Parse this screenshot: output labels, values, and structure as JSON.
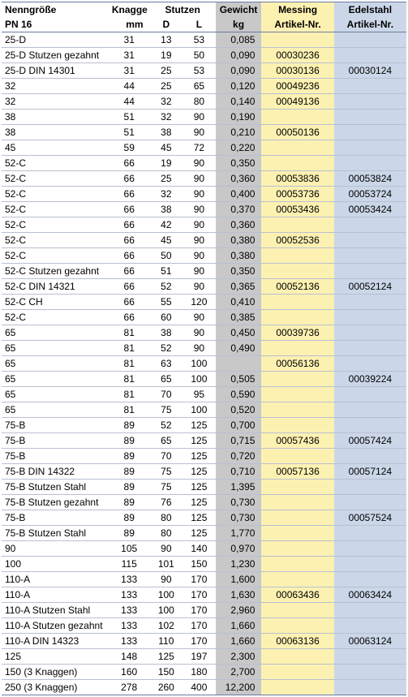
{
  "header": {
    "row1": {
      "name": "Nenngröße",
      "knagge": "Knagge",
      "stutzen": "Stutzen",
      "gewicht": "Gewicht",
      "messing": "Messing",
      "edelstahl": "Edelstahl"
    },
    "row2": {
      "name": "PN 16",
      "knagge": "mm",
      "d": "D",
      "l": "L",
      "gewicht": "kg",
      "messing": "Artikel-Nr.",
      "edelstahl": "Artikel-Nr."
    }
  },
  "colors": {
    "gewicht_bg": "#c8c8c8",
    "messing_bg": "#fdf1b2",
    "edelstahl_bg": "#cbd7e8",
    "border": "#b8c0d0",
    "outer_border": "#6a7ca0"
  },
  "rows": [
    {
      "name": "25-D",
      "knagge": "31",
      "d": "13",
      "l": "53",
      "wt": "0,085",
      "mes": "",
      "edl": ""
    },
    {
      "name": "25-D Stutzen gezahnt",
      "knagge": "31",
      "d": "19",
      "l": "50",
      "wt": "0,090",
      "mes": "00030236",
      "edl": ""
    },
    {
      "name": "25-D DIN 14301",
      "knagge": "31",
      "d": "25",
      "l": "53",
      "wt": "0,090",
      "mes": "00030136",
      "edl": "00030124"
    },
    {
      "name": "32",
      "knagge": "44",
      "d": "25",
      "l": "65",
      "wt": "0,120",
      "mes": "00049236",
      "edl": ""
    },
    {
      "name": "32",
      "knagge": "44",
      "d": "32",
      "l": "80",
      "wt": "0,140",
      "mes": "00049136",
      "edl": ""
    },
    {
      "name": "38",
      "knagge": "51",
      "d": "32",
      "l": "90",
      "wt": "0,190",
      "mes": "",
      "edl": ""
    },
    {
      "name": "38",
      "knagge": "51",
      "d": "38",
      "l": "90",
      "wt": "0,210",
      "mes": "00050136",
      "edl": ""
    },
    {
      "name": "45",
      "knagge": "59",
      "d": "45",
      "l": "72",
      "wt": "0,220",
      "mes": "",
      "edl": ""
    },
    {
      "name": "52-C",
      "knagge": "66",
      "d": "19",
      "l": "90",
      "wt": "0,350",
      "mes": "",
      "edl": ""
    },
    {
      "name": "52-C",
      "knagge": "66",
      "d": "25",
      "l": "90",
      "wt": "0,360",
      "mes": "00053836",
      "edl": "00053824"
    },
    {
      "name": "52-C",
      "knagge": "66",
      "d": "32",
      "l": "90",
      "wt": "0,400",
      "mes": "00053736",
      "edl": "00053724"
    },
    {
      "name": "52-C",
      "knagge": "66",
      "d": "38",
      "l": "90",
      "wt": "0,370",
      "mes": "00053436",
      "edl": "00053424"
    },
    {
      "name": "52-C",
      "knagge": "66",
      "d": "42",
      "l": "90",
      "wt": "0,360",
      "mes": "",
      "edl": ""
    },
    {
      "name": "52-C",
      "knagge": "66",
      "d": "45",
      "l": "90",
      "wt": "0,380",
      "mes": "00052536",
      "edl": ""
    },
    {
      "name": "52-C",
      "knagge": "66",
      "d": "50",
      "l": "90",
      "wt": "0,380",
      "mes": "",
      "edl": ""
    },
    {
      "name": "52-C Stutzen gezahnt",
      "knagge": "66",
      "d": "51",
      "l": "90",
      "wt": "0,350",
      "mes": "",
      "edl": ""
    },
    {
      "name": "52-C DIN 14321",
      "knagge": "66",
      "d": "52",
      "l": "90",
      "wt": "0,365",
      "mes": "00052136",
      "edl": "00052124"
    },
    {
      "name": "52-C CH",
      "knagge": "66",
      "d": "55",
      "l": "120",
      "wt": "0,410",
      "mes": "",
      "edl": ""
    },
    {
      "name": "52-C",
      "knagge": "66",
      "d": "60",
      "l": "90",
      "wt": "0,385",
      "mes": "",
      "edl": ""
    },
    {
      "name": "65",
      "knagge": "81",
      "d": "38",
      "l": "90",
      "wt": "0,450",
      "mes": "00039736",
      "edl": ""
    },
    {
      "name": "65",
      "knagge": "81",
      "d": "52",
      "l": "90",
      "wt": "0,490",
      "mes": "",
      "edl": ""
    },
    {
      "name": "65",
      "knagge": "81",
      "d": "63",
      "l": "100",
      "wt": "",
      "mes": "00056136",
      "edl": ""
    },
    {
      "name": "65",
      "knagge": "81",
      "d": "65",
      "l": "100",
      "wt": "0,505",
      "mes": "",
      "edl": "00039224"
    },
    {
      "name": "65",
      "knagge": "81",
      "d": "70",
      "l": "95",
      "wt": "0,590",
      "mes": "",
      "edl": ""
    },
    {
      "name": "65",
      "knagge": "81",
      "d": "75",
      "l": "100",
      "wt": "0,520",
      "mes": "",
      "edl": ""
    },
    {
      "name": "75-B",
      "knagge": "89",
      "d": "52",
      "l": "125",
      "wt": "0,700",
      "mes": "",
      "edl": ""
    },
    {
      "name": "75-B",
      "knagge": "89",
      "d": "65",
      "l": "125",
      "wt": "0,715",
      "mes": "00057436",
      "edl": "00057424"
    },
    {
      "name": "75-B",
      "knagge": "89",
      "d": "70",
      "l": "125",
      "wt": "0,720",
      "mes": "",
      "edl": ""
    },
    {
      "name": "75-B DIN 14322",
      "knagge": "89",
      "d": "75",
      "l": "125",
      "wt": "0,710",
      "mes": "00057136",
      "edl": "00057124"
    },
    {
      "name": "75-B Stutzen Stahl",
      "knagge": "89",
      "d": "75",
      "l": "125",
      "wt": "1,395",
      "mes": "",
      "edl": ""
    },
    {
      "name": "75-B Stutzen gezahnt",
      "knagge": "89",
      "d": "76",
      "l": "125",
      "wt": "0,730",
      "mes": "",
      "edl": ""
    },
    {
      "name": "75-B",
      "knagge": "89",
      "d": "80",
      "l": "125",
      "wt": "0,730",
      "mes": "",
      "edl": "00057524"
    },
    {
      "name": "75-B Stutzen Stahl",
      "knagge": "89",
      "d": "80",
      "l": "125",
      "wt": "1,770",
      "mes": "",
      "edl": ""
    },
    {
      "name": "90",
      "knagge": "105",
      "d": "90",
      "l": "140",
      "wt": "0,970",
      "mes": "",
      "edl": ""
    },
    {
      "name": "100",
      "knagge": "115",
      "d": "101",
      "l": "150",
      "wt": "1,230",
      "mes": "",
      "edl": ""
    },
    {
      "name": "110-A",
      "knagge": "133",
      "d": "90",
      "l": "170",
      "wt": "1,600",
      "mes": "",
      "edl": ""
    },
    {
      "name": "110-A",
      "knagge": "133",
      "d": "100",
      "l": "170",
      "wt": "1,630",
      "mes": "00063436",
      "edl": "00063424"
    },
    {
      "name": "110-A Stutzen Stahl",
      "knagge": "133",
      "d": "100",
      "l": "170",
      "wt": "2,960",
      "mes": "",
      "edl": ""
    },
    {
      "name": "110-A Stutzen gezahnt",
      "knagge": "133",
      "d": "102",
      "l": "170",
      "wt": "1,660",
      "mes": "",
      "edl": ""
    },
    {
      "name": "110-A DIN 14323",
      "knagge": "133",
      "d": "110",
      "l": "170",
      "wt": "1,660",
      "mes": "00063136",
      "edl": "00063124"
    },
    {
      "name": "125",
      "knagge": "148",
      "d": "125",
      "l": "197",
      "wt": "2,300",
      "mes": "",
      "edl": ""
    },
    {
      "name": "150 (3 Knaggen)",
      "knagge": "160",
      "d": "150",
      "l": "180",
      "wt": "2,700",
      "mes": "",
      "edl": ""
    },
    {
      "name": "250 (3 Knaggen)",
      "knagge": "278",
      "d": "260",
      "l": "400",
      "wt": "12,200",
      "mes": "",
      "edl": ""
    }
  ]
}
